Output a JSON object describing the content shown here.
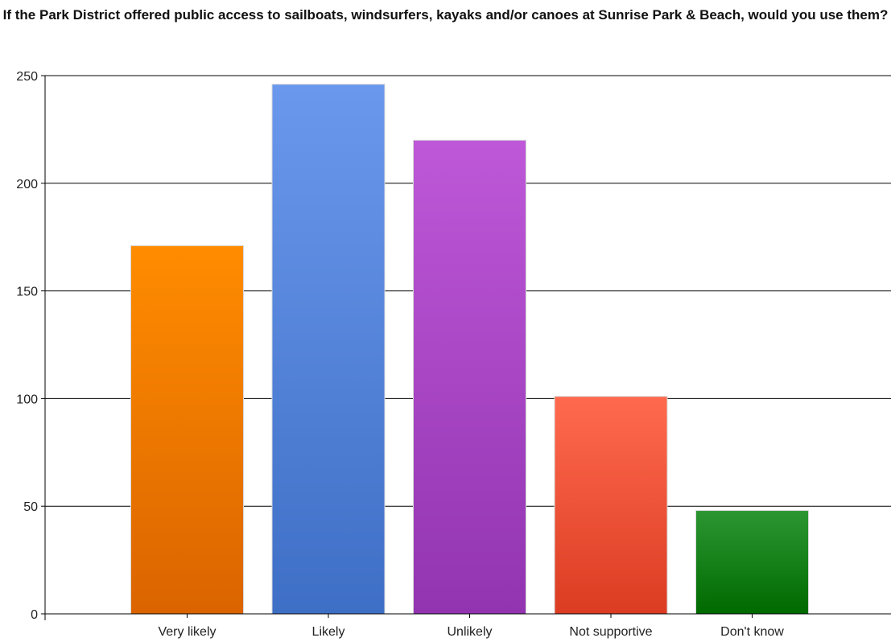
{
  "chart_data": {
    "type": "bar",
    "title": "If the Park District offered public access to sailboats, windsurfers, kayaks and/or canoes at Sunrise Park & Beach, would you use them?",
    "categories": [
      "Very likely",
      "Likely",
      "Unlikely",
      "Not supportive",
      "Don't know"
    ],
    "values": [
      171,
      246,
      220,
      101,
      48
    ],
    "xlabel": "",
    "ylabel": "",
    "ylim": [
      0,
      250
    ],
    "yticks": [
      0,
      50,
      100,
      150,
      200,
      250
    ],
    "grid": true,
    "legend": "none",
    "colors": [
      [
        "#ff8c00",
        "#db6400"
      ],
      [
        "#6a98ec",
        "#3e6fc6"
      ],
      [
        "#be58d8",
        "#9234b0"
      ],
      [
        "#ff6a4e",
        "#db3c22"
      ],
      [
        "#2c9632",
        "#006a00"
      ]
    ]
  }
}
